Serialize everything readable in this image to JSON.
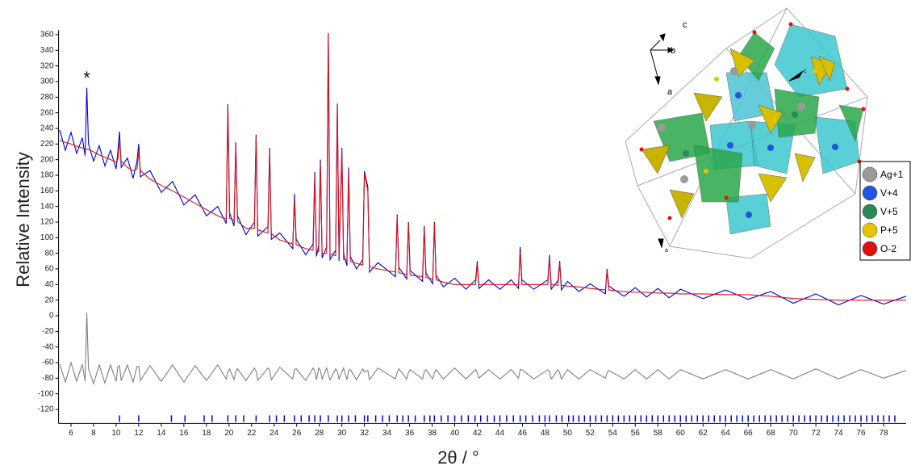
{
  "chart_data": {
    "type": "line",
    "x_label": "2θ / °",
    "y_label": "Relative Intensity",
    "annotation": {
      "text": "*",
      "x": 7.4,
      "y": 305
    },
    "xlim": [
      4.9,
      80
    ],
    "ylim": [
      -138,
      366
    ],
    "xticks": [
      6,
      8,
      10,
      12,
      14,
      16,
      18,
      20,
      22,
      24,
      26,
      28,
      30,
      32,
      34,
      36,
      38,
      40,
      42,
      44,
      46,
      48,
      50,
      52,
      54,
      56,
      58,
      60,
      62,
      64,
      66,
      68,
      70,
      72,
      74,
      76,
      78
    ],
    "yticks": [
      -120,
      -100,
      -80,
      -60,
      -40,
      -20,
      0,
      20,
      40,
      60,
      80,
      100,
      120,
      140,
      160,
      180,
      200,
      220,
      240,
      260,
      280,
      300,
      320,
      340,
      360
    ],
    "x": [
      5,
      5.5,
      6,
      6.5,
      7,
      7.25,
      7.4,
      7.55,
      8,
      8.5,
      9,
      9.5,
      10,
      10.15,
      10.3,
      10.45,
      11,
      11.5,
      11.85,
      12,
      12.15,
      13,
      14,
      15,
      16,
      17,
      18,
      19,
      19.75,
      19.9,
      20.05,
      20.45,
      20.6,
      20.75,
      21.5,
      22.25,
      22.4,
      22.55,
      23.45,
      23.6,
      23.75,
      24.5,
      25.65,
      25.8,
      25.95,
      26.8,
      27.45,
      27.6,
      27.75,
      27.95,
      28.1,
      28.25,
      28.65,
      28.8,
      28.95,
      29.45,
      29.6,
      29.75,
      30.0,
      30.15,
      30.45,
      30.6,
      30.75,
      31.3,
      31.85,
      32.0,
      32.3,
      32.45,
      33.2,
      34.75,
      34.9,
      35.05,
      35.75,
      35.9,
      36.05,
      37.15,
      37.3,
      37.45,
      38.05,
      38.2,
      38.35,
      39,
      40,
      41,
      41.85,
      42,
      42.15,
      43,
      44,
      45,
      45.65,
      45.8,
      45.95,
      47,
      48.25,
      48.4,
      48.55,
      49.15,
      49.3,
      49.45,
      50,
      51,
      52,
      53.35,
      53.5,
      53.65,
      55,
      56,
      57,
      58,
      59,
      60,
      62,
      64,
      66,
      68,
      70,
      72,
      74,
      76,
      78,
      80
    ],
    "series": [
      {
        "color": "#0000dd",
        "values": [
          238,
          212,
          235,
          208,
          228,
          205,
          292,
          220,
          198,
          218,
          192,
          212,
          188,
          210,
          236,
          190,
          202,
          176,
          198,
          220,
          178,
          186,
          158,
          172,
          142,
          155,
          128,
          140,
          118,
          271,
          132,
          115,
          222,
          128,
          104,
          120,
          232,
          102,
          114,
          215,
          98,
          106,
          86,
          156,
          98,
          78,
          92,
          184,
          76,
          90,
          200,
          74,
          88,
          362,
          72,
          84,
          272,
          70,
          215,
          80,
          64,
          190,
          76,
          60,
          72,
          185,
          165,
          56,
          68,
          50,
          130,
          62,
          47,
          120,
          58,
          44,
          115,
          55,
          41,
          120,
          52,
          37,
          48,
          34,
          46,
          70,
          35,
          46,
          34,
          46,
          35,
          88,
          46,
          34,
          46,
          78,
          34,
          45,
          70,
          33,
          44,
          31,
          41,
          28,
          60,
          38,
          25,
          36,
          24,
          35,
          23,
          34,
          22,
          33,
          21,
          31,
          16,
          28,
          14,
          26,
          15,
          25
        ]
      },
      {
        "color": "#e01010",
        "values": [
          225,
          222,
          220,
          217,
          215,
          214,
          213,
          213,
          210,
          206,
          203,
          200,
          197,
          200,
          225,
          198,
          190,
          186,
          188,
          210,
          186,
          175,
          167,
          160,
          152,
          144,
          136,
          128,
          124,
          268,
          125,
          122,
          218,
          121,
          112,
          112,
          228,
          110,
          106,
          210,
          105,
          97,
          92,
          150,
          91,
          86,
          84,
          180,
          83,
          82,
          195,
          80,
          80,
          362,
          79,
          77,
          268,
          76,
          212,
          72,
          71,
          185,
          70,
          67,
          65,
          182,
          160,
          63,
          60,
          56,
          128,
          55,
          53,
          118,
          52,
          50,
          112,
          49,
          47,
          118,
          46,
          43,
          40,
          40,
          40,
          68,
          40,
          40,
          40,
          40,
          40,
          82,
          40,
          40,
          40,
          75,
          40,
          39,
          68,
          39,
          38,
          37,
          35,
          33,
          58,
          33,
          31,
          30,
          30,
          29,
          29,
          28,
          28,
          27,
          27,
          25,
          22,
          21,
          20,
          20,
          20,
          20
        ]
      },
      {
        "color": "#808080",
        "values": [
          -62,
          -85,
          -60,
          -84,
          -62,
          -84,
          4,
          -68,
          -87,
          -63,
          -86,
          -63,
          -84,
          -65,
          -64,
          -83,
          -63,
          -85,
          -65,
          -65,
          -83,
          -64,
          -84,
          -63,
          -85,
          -64,
          -83,
          -63,
          -81,
          -72,
          -68,
          -82,
          -71,
          -68,
          -83,
          -67,
          -71,
          -83,
          -67,
          -70,
          -82,
          -66,
          -81,
          -69,
          -68,
          -83,
          -67,
          -71,
          -82,
          -67,
          -70,
          -81,
          -67,
          -75,
          -82,
          -68,
          -71,
          -81,
          -72,
          -67,
          -82,
          -70,
          -69,
          -82,
          -68,
          -72,
          -70,
          -82,
          -67,
          -81,
          -73,
          -68,
          -81,
          -73,
          -69,
          -81,
          -72,
          -69,
          -81,
          -73,
          -69,
          -81,
          -67,
          -81,
          -69,
          -73,
          -80,
          -69,
          -81,
          -69,
          -80,
          -69,
          -69,
          -81,
          -69,
          -72,
          -81,
          -69,
          -73,
          -81,
          -69,
          -81,
          -69,
          -80,
          -73,
          -70,
          -81,
          -69,
          -81,
          -69,
          -81,
          -69,
          -81,
          -69,
          -81,
          -69,
          -81,
          -68,
          -81,
          -69,
          -80,
          -70
        ]
      }
    ],
    "reflections": {
      "color": "#0000dd",
      "x": [
        10.3,
        12.0,
        14.9,
        16.1,
        17.8,
        18.5,
        19.9,
        20.6,
        21.3,
        22.4,
        23.6,
        24.2,
        24.9,
        25.8,
        26.4,
        27.1,
        27.6,
        28.1,
        28.8,
        29.6,
        30.0,
        30.6,
        31.2,
        32.0,
        32.3,
        33.0,
        33.6,
        34.2,
        34.9,
        35.4,
        35.9,
        36.5,
        37.3,
        37.8,
        38.2,
        38.8,
        39.4,
        40.0,
        40.6,
        41.2,
        41.8,
        42.3,
        42.9,
        43.5,
        44.0,
        44.6,
        45.2,
        45.8,
        46.3,
        46.9,
        47.5,
        48.0,
        48.4,
        49.0,
        49.5,
        50.1,
        50.5,
        51,
        51.5,
        52,
        52.5,
        53,
        53.5,
        54,
        54.5,
        55,
        55.5,
        56,
        56.5,
        57,
        57.5,
        58,
        58.5,
        59,
        59.5,
        60,
        60.5,
        61,
        61.5,
        62,
        62.5,
        63,
        63.5,
        64,
        64.5,
        65,
        65.5,
        66,
        66.5,
        67,
        67.5,
        68,
        68.5,
        69,
        69.5,
        70,
        70.5,
        71,
        71.5,
        72,
        72.5,
        73,
        73.5,
        74,
        74.5,
        75,
        75.5,
        76,
        76.5,
        77,
        77.5,
        78,
        78.5,
        79
      ]
    },
    "structure_labels": [
      "c",
      "b",
      "a",
      "c",
      "a"
    ],
    "structure_legend": [
      {
        "label": "Ag+1",
        "color": "#9a9a9a"
      },
      {
        "label": "V+4",
        "color": "#2255dd"
      },
      {
        "label": "V+5",
        "color": "#2a8a55"
      },
      {
        "label": "P+5",
        "color": "#e8c400"
      },
      {
        "label": "O-2",
        "color": "#dd1010"
      }
    ]
  }
}
